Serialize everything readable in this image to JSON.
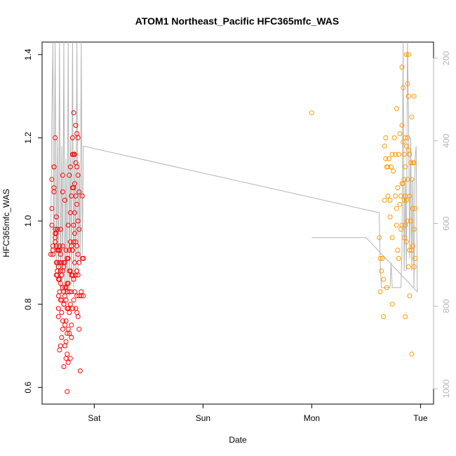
{
  "chart_data": {
    "type": "scatter",
    "title": "ATOM1 Northeast_Pacific HFC365mfc_WAS",
    "xlabel": "Date",
    "ylabel": "HFC365mfc_WAS",
    "x_unit": "days",
    "x_ticks": [
      {
        "label": "Sat",
        "value": 1.0
      },
      {
        "label": "Sun",
        "value": 2.0
      },
      {
        "label": "Mon",
        "value": 3.0
      },
      {
        "label": "Tue",
        "value": 4.0
      }
    ],
    "xlim": [
      0.52,
      4.12
    ],
    "ylim": [
      0.56,
      1.43
    ],
    "y_ticks": [
      0.6,
      0.8,
      1.0,
      1.2,
      1.4
    ],
    "y2_ticks": [
      200,
      400,
      600,
      800,
      1000
    ],
    "y2lim": [
      1037,
      161
    ],
    "colors": {
      "series_red": "#ff0000",
      "series_orange": "#ff9900",
      "pressure_line": "#b4b4b4"
    },
    "grid": false,
    "series": [
      {
        "color": "#ff0000",
        "points": [
          [
            0.6,
            0.92
          ],
          [
            0.61,
            1.1
          ],
          [
            0.61,
            1.03
          ],
          [
            0.61,
            0.99
          ],
          [
            0.62,
            0.93
          ],
          [
            0.62,
            0.94
          ],
          [
            0.62,
            0.92
          ],
          [
            0.63,
            1.07
          ],
          [
            0.63,
            1.08
          ],
          [
            0.63,
            1.13
          ],
          [
            0.63,
            1.13
          ],
          [
            0.64,
            0.97
          ],
          [
            0.64,
            0.96
          ],
          [
            0.64,
            0.95
          ],
          [
            0.64,
            0.98
          ],
          [
            0.64,
            1.2
          ],
          [
            0.65,
            0.97
          ],
          [
            0.65,
            1.01
          ],
          [
            0.65,
            0.94
          ],
          [
            0.65,
            0.9
          ],
          [
            0.65,
            0.87
          ],
          [
            0.66,
            0.98
          ],
          [
            0.66,
            0.98
          ],
          [
            0.66,
            0.9
          ],
          [
            0.66,
            0.87
          ],
          [
            0.66,
            0.88
          ],
          [
            0.66,
            0.93
          ],
          [
            0.67,
            0.93
          ],
          [
            0.67,
            0.89
          ],
          [
            0.67,
            0.86
          ],
          [
            0.67,
            0.82
          ],
          [
            0.67,
            0.77
          ],
          [
            0.67,
            0.79
          ],
          [
            0.68,
            0.94
          ],
          [
            0.68,
            0.93
          ],
          [
            0.68,
            0.9
          ],
          [
            0.68,
            0.86
          ],
          [
            0.68,
            0.83
          ],
          [
            0.68,
            0.69
          ],
          [
            0.69,
            0.98
          ],
          [
            0.69,
            0.92
          ],
          [
            0.69,
            0.88
          ],
          [
            0.69,
            0.85
          ],
          [
            0.69,
            0.81
          ],
          [
            0.69,
            0.7
          ],
          [
            0.7,
            0.9
          ],
          [
            0.7,
            0.87
          ],
          [
            0.7,
            0.81
          ],
          [
            0.7,
            0.78
          ],
          [
            0.7,
            0.72
          ],
          [
            0.71,
            1.11
          ],
          [
            0.71,
            1.07
          ],
          [
            0.71,
            0.94
          ],
          [
            0.71,
            0.88
          ],
          [
            0.71,
            0.84
          ],
          [
            0.71,
            0.76
          ],
          [
            0.71,
            0.74
          ],
          [
            0.72,
            0.9
          ],
          [
            0.72,
            0.89
          ],
          [
            0.72,
            0.83
          ],
          [
            0.72,
            0.8
          ],
          [
            0.72,
            0.8
          ],
          [
            0.72,
            0.65
          ],
          [
            0.73,
            1.05
          ],
          [
            0.73,
            0.9
          ],
          [
            0.73,
            0.84
          ],
          [
            0.73,
            0.82
          ],
          [
            0.73,
            0.75
          ],
          [
            0.73,
            0.7
          ],
          [
            0.74,
            0.93
          ],
          [
            0.74,
            0.84
          ],
          [
            0.74,
            0.81
          ],
          [
            0.74,
            0.76
          ],
          [
            0.74,
            0.71
          ],
          [
            0.74,
            0.67
          ],
          [
            0.75,
            0.91
          ],
          [
            0.75,
            0.85
          ],
          [
            0.75,
            0.83
          ],
          [
            0.75,
            0.79
          ],
          [
            0.75,
            0.73
          ],
          [
            0.75,
            0.68
          ],
          [
            0.75,
            0.59
          ],
          [
            0.76,
            0.99
          ],
          [
            0.76,
            0.91
          ],
          [
            0.76,
            0.85
          ],
          [
            0.76,
            0.79
          ],
          [
            0.76,
            0.74
          ],
          [
            0.76,
            0.66
          ],
          [
            0.77,
            1.11
          ],
          [
            0.77,
            0.93
          ],
          [
            0.77,
            0.88
          ],
          [
            0.77,
            0.83
          ],
          [
            0.77,
            0.78
          ],
          [
            0.77,
            0.73
          ],
          [
            0.78,
            1.13
          ],
          [
            0.78,
            1.02
          ],
          [
            0.78,
            0.95
          ],
          [
            0.78,
            0.88
          ],
          [
            0.78,
            0.8
          ],
          [
            0.78,
            0.67
          ],
          [
            0.79,
            1.06
          ],
          [
            0.79,
            0.94
          ],
          [
            0.79,
            0.87
          ],
          [
            0.79,
            0.83
          ],
          [
            0.79,
            0.75
          ],
          [
            0.79,
            0.72
          ],
          [
            0.8,
            1.2
          ],
          [
            0.8,
            1.16
          ],
          [
            0.8,
            1.08
          ],
          [
            0.8,
            0.93
          ],
          [
            0.8,
            0.87
          ],
          [
            0.8,
            0.79
          ],
          [
            0.81,
            1.26
          ],
          [
            0.81,
            1.16
          ],
          [
            0.81,
            1.08
          ],
          [
            0.81,
            0.99
          ],
          [
            0.81,
            0.95
          ],
          [
            0.81,
            0.86
          ],
          [
            0.81,
            0.81
          ],
          [
            0.82,
            1.16
          ],
          [
            0.82,
            1.09
          ],
          [
            0.82,
            1.02
          ],
          [
            0.82,
            0.97
          ],
          [
            0.82,
            0.9
          ],
          [
            0.82,
            0.83
          ],
          [
            0.83,
            1.23
          ],
          [
            0.83,
            1.14
          ],
          [
            0.83,
            1.06
          ],
          [
            0.83,
            0.95
          ],
          [
            0.83,
            0.87
          ],
          [
            0.83,
            0.79
          ],
          [
            0.84,
            1.21
          ],
          [
            0.84,
            1.13
          ],
          [
            0.84,
            1.04
          ],
          [
            0.84,
            0.94
          ],
          [
            0.84,
            0.88
          ],
          [
            0.84,
            0.82
          ],
          [
            0.84,
            0.78
          ],
          [
            0.85,
            1.2
          ],
          [
            0.85,
            1.11
          ],
          [
            0.85,
            1.0
          ],
          [
            0.85,
            0.92
          ],
          [
            0.85,
            0.87
          ],
          [
            0.85,
            0.77
          ],
          [
            0.86,
            1.07
          ],
          [
            0.86,
            0.98
          ],
          [
            0.86,
            0.9
          ],
          [
            0.86,
            0.82
          ],
          [
            0.86,
            0.74
          ],
          [
            0.87,
            0.64
          ],
          [
            0.88,
            0.83
          ],
          [
            0.88,
            0.82
          ],
          [
            0.89,
            0.91
          ],
          [
            0.89,
            1.06
          ],
          [
            0.9,
            0.91
          ],
          [
            0.9,
            0.82
          ]
        ]
      },
      {
        "color": "#ff9900",
        "points": [
          [
            3.0,
            1.26
          ],
          [
            3.62,
            0.96
          ],
          [
            3.63,
            0.91
          ],
          [
            3.63,
            0.83
          ],
          [
            3.64,
            0.88
          ],
          [
            3.65,
            0.91
          ],
          [
            3.66,
            0.86
          ],
          [
            3.66,
            0.77
          ],
          [
            3.67,
            1.05
          ],
          [
            3.67,
            1.18
          ],
          [
            3.68,
            1.2
          ],
          [
            3.68,
            1.15
          ],
          [
            3.69,
            1.13
          ],
          [
            3.69,
            0.84
          ],
          [
            3.7,
            1.06
          ],
          [
            3.7,
            1.13
          ],
          [
            3.71,
            1.15
          ],
          [
            3.72,
            1.05
          ],
          [
            3.72,
            1.01
          ],
          [
            3.73,
            1.13
          ],
          [
            3.74,
            1.16
          ],
          [
            3.74,
            0.96
          ],
          [
            3.74,
            0.8
          ],
          [
            3.75,
            1.12
          ],
          [
            3.76,
            1.2
          ],
          [
            3.77,
            1.06
          ],
          [
            3.77,
            1.16
          ],
          [
            3.78,
            1.27
          ],
          [
            3.78,
            1.03
          ],
          [
            3.78,
            0.99
          ],
          [
            3.79,
            1.08
          ],
          [
            3.79,
            0.93
          ],
          [
            3.8,
            1.16
          ],
          [
            3.8,
            0.91
          ],
          [
            3.81,
            1.04
          ],
          [
            3.81,
            1.21
          ],
          [
            3.82,
            0.98
          ],
          [
            3.82,
            1.06
          ],
          [
            3.83,
            1.37
          ],
          [
            3.83,
            1.23
          ],
          [
            3.83,
            1.09
          ],
          [
            3.83,
            0.99
          ],
          [
            3.84,
            1.32
          ],
          [
            3.84,
            1.19
          ],
          [
            3.84,
            1.09
          ],
          [
            3.85,
            1.16
          ],
          [
            3.85,
            1.1
          ],
          [
            3.85,
            1.05
          ],
          [
            3.85,
            0.96
          ],
          [
            3.86,
            1.2
          ],
          [
            3.86,
            1.13
          ],
          [
            3.86,
            1.06
          ],
          [
            3.86,
            0.99
          ],
          [
            3.86,
            0.77
          ],
          [
            3.87,
            1.4
          ],
          [
            3.87,
            1.18
          ],
          [
            3.87,
            1.05
          ],
          [
            3.87,
            0.95
          ],
          [
            3.88,
            1.33
          ],
          [
            3.88,
            1.2
          ],
          [
            3.88,
            1.1
          ],
          [
            3.88,
            1.0
          ],
          [
            3.89,
            1.4
          ],
          [
            3.89,
            1.3
          ],
          [
            3.89,
            1.17
          ],
          [
            3.89,
            0.89
          ],
          [
            3.9,
            1.16
          ],
          [
            3.9,
            1.06
          ],
          [
            3.9,
            0.93
          ],
          [
            3.91,
            1.14
          ],
          [
            3.91,
            1.0
          ],
          [
            3.92,
            1.25
          ],
          [
            3.92,
            1.1
          ],
          [
            3.92,
            0.93
          ],
          [
            3.93,
            1.14
          ],
          [
            3.93,
            1.03
          ],
          [
            3.93,
            0.94
          ],
          [
            3.94,
            1.3
          ],
          [
            3.94,
            1.14
          ],
          [
            3.94,
            0.98
          ],
          [
            3.94,
            0.89
          ],
          [
            3.95,
            1.03
          ],
          [
            3.95,
            0.91
          ],
          [
            3.9,
            0.82
          ],
          [
            3.92,
            0.68
          ]
        ]
      }
    ],
    "pressure_line": [
      [
        0.6,
        0.92
      ],
      [
        0.61,
        1.25
      ],
      [
        0.62,
        1.43
      ],
      [
        0.625,
        1.0
      ],
      [
        0.63,
        0.93
      ],
      [
        0.64,
        1.43
      ],
      [
        0.65,
        0.88
      ],
      [
        0.66,
        1.2
      ],
      [
        0.67,
        0.86
      ],
      [
        0.68,
        1.43
      ],
      [
        0.69,
        0.83
      ],
      [
        0.7,
        1.18
      ],
      [
        0.71,
        0.86
      ],
      [
        0.72,
        1.43
      ],
      [
        0.73,
        0.82
      ],
      [
        0.74,
        1.15
      ],
      [
        0.75,
        0.83
      ],
      [
        0.76,
        1.43
      ],
      [
        0.77,
        0.82
      ],
      [
        0.78,
        1.2
      ],
      [
        0.79,
        0.85
      ],
      [
        0.8,
        1.43
      ],
      [
        0.81,
        0.84
      ],
      [
        0.82,
        1.17
      ],
      [
        0.83,
        0.86
      ],
      [
        0.84,
        1.43
      ],
      [
        0.85,
        0.87
      ],
      [
        0.86,
        1.14
      ],
      [
        0.87,
        0.9
      ],
      [
        0.88,
        1.43
      ],
      [
        0.89,
        0.92
      ],
      [
        0.9,
        1.18
      ],
      [
        3.62,
        1.02
      ],
      [
        3.63,
        0.9
      ],
      [
        3.64,
        0.84
      ],
      [
        3.72,
        0.84
      ],
      [
        3.73,
        0.9
      ],
      [
        3.74,
        0.84
      ],
      [
        3.82,
        0.84
      ],
      [
        3.83,
        0.93
      ],
      [
        3.84,
        1.43
      ],
      [
        3.85,
        0.88
      ],
      [
        3.86,
        1.1
      ],
      [
        3.87,
        0.88
      ],
      [
        3.88,
        1.43
      ],
      [
        3.89,
        1.25
      ],
      [
        3.9,
        0.91
      ],
      [
        3.91,
        1.2
      ],
      [
        3.92,
        0.88
      ],
      [
        3.93,
        1.1
      ],
      [
        3.94,
        0.84
      ],
      [
        3.95,
        1.15
      ],
      [
        3.96,
        1.18
      ],
      [
        3.97,
        0.83
      ],
      [
        3.5,
        0.96
      ],
      [
        3.0,
        0.96
      ]
    ]
  }
}
